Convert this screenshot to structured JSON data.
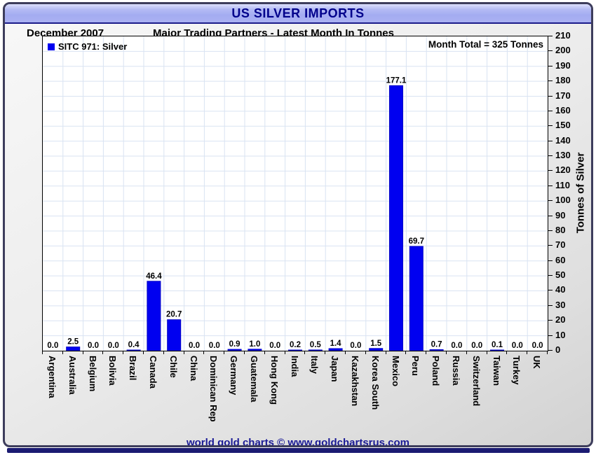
{
  "window": {
    "title": "US SILVER IMPORTS"
  },
  "header": {
    "date_label": "December 2007",
    "subtitle": "Major Trading Partners - Latest Month In Tonnes"
  },
  "legend": {
    "label": "SITC 971: Silver"
  },
  "annotation": {
    "month_total": "Month Total = 325 Tonnes"
  },
  "footer": {
    "credit": "world gold charts © www.goldchartsrus.com"
  },
  "colors": {
    "bar": "#0000f0",
    "bar_edge": "#0000c8",
    "grid": "#d9e3f2",
    "title_text": "#00008b",
    "footer_text": "#1a1a96",
    "bottom_bar": "#1b1b72"
  },
  "chart_data": {
    "type": "bar",
    "title": "US SILVER IMPORTS",
    "subtitle": "Major Trading Partners - Latest Month In Tonnes",
    "period": "December 2007",
    "series_name": "SITC 971: Silver",
    "categories": [
      "Argentina",
      "Australia",
      "Belgium",
      "Bolivia",
      "Brazil",
      "Canada",
      "Chile",
      "China",
      "Dominican Rep",
      "Germany",
      "Guatemala",
      "Hong Kong",
      "India",
      "Italy",
      "Japan",
      "Kazakhstan",
      "Korea South",
      "Mexico",
      "Peru",
      "Poland",
      "Russia",
      "Switzerland",
      "Taiwan",
      "Turkey",
      "UK"
    ],
    "values": [
      0.0,
      2.5,
      0.0,
      0.0,
      0.4,
      46.4,
      20.7,
      0.0,
      0.0,
      0.9,
      1.0,
      0.0,
      0.2,
      0.5,
      1.4,
      0.0,
      1.5,
      177.1,
      69.7,
      0.7,
      0.0,
      0.0,
      0.1,
      0.0,
      0.0
    ],
    "month_total_tonnes": 325,
    "xlabel": "",
    "ylabel": "Tonnes of Silver",
    "ylim": [
      0,
      210
    ],
    "ytick_step": 10,
    "grid": true,
    "value_labels": true,
    "legend_position": "top-left"
  }
}
